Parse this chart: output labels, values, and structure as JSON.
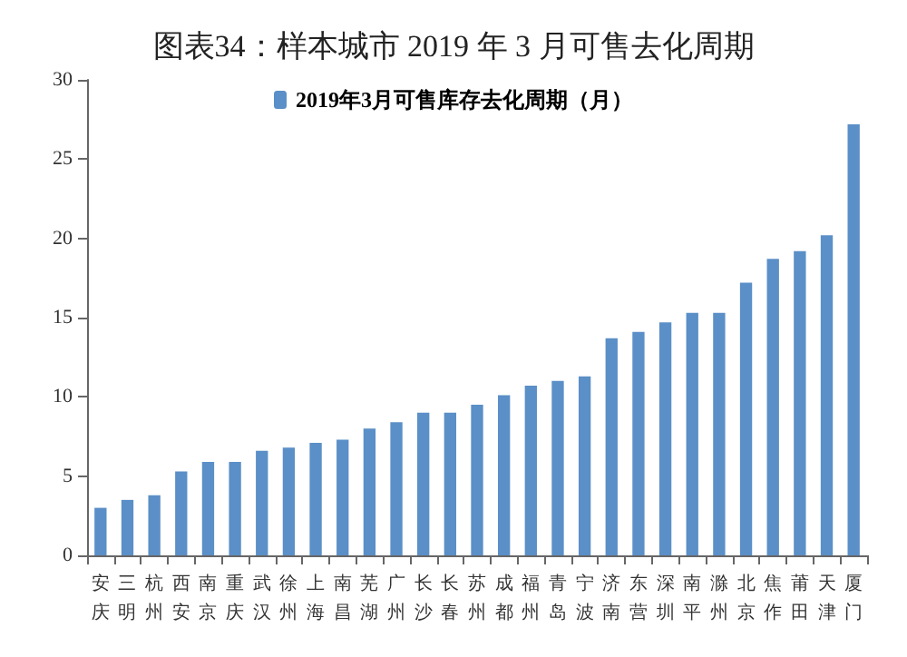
{
  "chart_data": {
    "type": "bar",
    "title": "图表34：样本城市 2019 年 3 月可售去化周期",
    "categories": [
      "安庆",
      "三明",
      "杭州",
      "西安",
      "南京",
      "重庆",
      "武汉",
      "徐州",
      "上海",
      "南昌",
      "芜湖",
      "广州",
      "长沙",
      "长春",
      "苏州",
      "成都",
      "福州",
      "青岛",
      "宁波",
      "济南",
      "东营",
      "深圳",
      "南平",
      "滁州",
      "北京",
      "焦作",
      "莆田",
      "天津",
      "厦门"
    ],
    "series": [
      {
        "name": "2019年3月可售库存去化周期（月）",
        "color": "#5b8fc7",
        "values": [
          3.0,
          3.5,
          3.8,
          5.3,
          5.9,
          5.9,
          6.6,
          6.8,
          7.1,
          7.3,
          8.0,
          8.4,
          9.0,
          9.0,
          9.5,
          10.1,
          10.7,
          11.0,
          11.3,
          13.7,
          14.1,
          14.7,
          15.3,
          15.3,
          17.2,
          18.7,
          19.2,
          20.2,
          27.2
        ]
      }
    ],
    "ylim": [
      0,
      30
    ],
    "yticks": [
      0,
      5,
      10,
      15,
      20,
      25,
      30
    ],
    "grid": false,
    "legend": "top"
  }
}
